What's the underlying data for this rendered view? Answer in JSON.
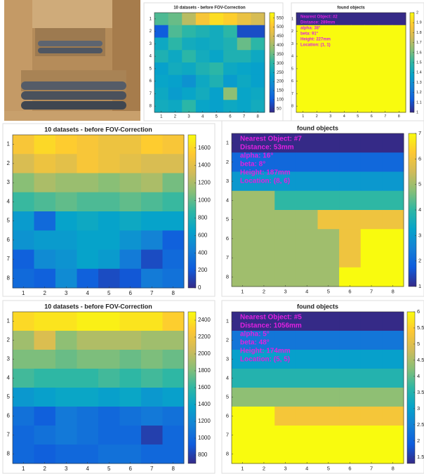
{
  "chart_data": [
    {
      "type": "heatmap",
      "title": "10 datasets - before FOV-Correction",
      "xticks": [
        1,
        2,
        3,
        4,
        5,
        6,
        7,
        8
      ],
      "yticks": [
        1,
        2,
        3,
        4,
        5,
        6,
        7,
        8
      ],
      "clim": [
        30,
        580
      ],
      "cticks": [
        50,
        100,
        150,
        200,
        250,
        300,
        350,
        400,
        450,
        500,
        550
      ],
      "z": [
        [
          330,
          350,
          420,
          500,
          540,
          520,
          480,
          450
        ],
        [
          100,
          330,
          300,
          280,
          260,
          300,
          80,
          80
        ],
        [
          250,
          300,
          260,
          250,
          260,
          280,
          350,
          300
        ],
        [
          280,
          250,
          300,
          260,
          240,
          280,
          280,
          250
        ],
        [
          230,
          260,
          250,
          280,
          300,
          250,
          240,
          230
        ],
        [
          240,
          230,
          200,
          250,
          280,
          220,
          250,
          230
        ],
        [
          250,
          220,
          240,
          260,
          230,
          380,
          240,
          250
        ],
        [
          260,
          250,
          300,
          240,
          230,
          250,
          240,
          260
        ]
      ]
    },
    {
      "type": "heatmap",
      "title": "found objects",
      "xticks": [
        1,
        2,
        3,
        4,
        5,
        6,
        7,
        8
      ],
      "yticks": [
        1,
        2,
        3,
        4,
        5,
        6,
        7,
        8
      ],
      "clim": [
        1,
        2
      ],
      "cticks": [
        1,
        1.1,
        1.2,
        1.3,
        1.4,
        1.5,
        1.6,
        1.7,
        1.8,
        1.9,
        2
      ],
      "annotations": [
        "Nearest Object: #2",
        "Distance: 289mm",
        "alpha: 38°",
        "beta: 91°",
        "Height: 227mm",
        "Location: (1, 1)"
      ],
      "z": [
        [
          1,
          1,
          1,
          1,
          1,
          1,
          1,
          1
        ],
        [
          2,
          2,
          2,
          2,
          2,
          2,
          2,
          2
        ],
        [
          2,
          2,
          2,
          2,
          2,
          2,
          2,
          2
        ],
        [
          2,
          2,
          2,
          2,
          2,
          2,
          2,
          2
        ],
        [
          2,
          2,
          2,
          2,
          2,
          2,
          2,
          2
        ],
        [
          2,
          2,
          2,
          2,
          2,
          2,
          2,
          2
        ],
        [
          2,
          2,
          2,
          2,
          2,
          2,
          2,
          2
        ],
        [
          2,
          2,
          2,
          2,
          2,
          2,
          2,
          2
        ]
      ]
    },
    {
      "type": "heatmap",
      "title": "10 datasets - before FOV-Correction",
      "xticks": [
        1,
        2,
        3,
        4,
        5,
        6,
        7,
        8
      ],
      "yticks": [
        1,
        2,
        3,
        4,
        5,
        6,
        7,
        8
      ],
      "clim": [
        0,
        1750
      ],
      "cticks": [
        0,
        200,
        400,
        600,
        800,
        1000,
        1200,
        1400,
        1600
      ],
      "z": [
        [
          1500,
          1600,
          1550,
          1500,
          1450,
          1450,
          1550,
          1500
        ],
        [
          1350,
          1450,
          1400,
          1500,
          1450,
          1400,
          1350,
          1350
        ],
        [
          1100,
          1200,
          1150,
          1150,
          1100,
          1150,
          1200,
          1050
        ],
        [
          900,
          950,
          1000,
          950,
          950,
          1000,
          950,
          900
        ],
        [
          600,
          300,
          650,
          700,
          650,
          700,
          650,
          650
        ],
        [
          550,
          600,
          600,
          650,
          650,
          550,
          450,
          250
        ],
        [
          250,
          500,
          550,
          650,
          600,
          400,
          150,
          300
        ],
        [
          300,
          250,
          500,
          250,
          150,
          200,
          400,
          350
        ]
      ]
    },
    {
      "type": "heatmap",
      "title": "found objects",
      "xticks": [
        1,
        2,
        3,
        4,
        5,
        6,
        7,
        8
      ],
      "yticks": [
        1,
        2,
        3,
        4,
        5,
        6,
        7,
        8
      ],
      "clim": [
        1,
        7
      ],
      "cticks": [
        1,
        2,
        3,
        4,
        5,
        6,
        7
      ],
      "annotations": [
        "Nearest Object: #7",
        "Distance: 53mm",
        "alpha: 16°",
        "beta: 8°",
        "Height: 187mm",
        "Location: (8, 6)"
      ],
      "z": [
        [
          1,
          1,
          1,
          1,
          1,
          1,
          1,
          1
        ],
        [
          2,
          2,
          2,
          2,
          2,
          2,
          2,
          2
        ],
        [
          3,
          3,
          3,
          3,
          3,
          3,
          3,
          3
        ],
        [
          5,
          5,
          4,
          4,
          4,
          4,
          4,
          4
        ],
        [
          5,
          5,
          5,
          5,
          6,
          6,
          6,
          6
        ],
        [
          5,
          5,
          5,
          5,
          5,
          6,
          7,
          7
        ],
        [
          5,
          5,
          5,
          5,
          5,
          6,
          7,
          7
        ],
        [
          5,
          5,
          5,
          5,
          5,
          7,
          7,
          7
        ]
      ]
    },
    {
      "type": "heatmap",
      "title": "10 datasets - before FOV-Correction",
      "xticks": [
        1,
        2,
        3,
        4,
        5,
        6,
        7,
        8
      ],
      "yticks": [
        1,
        2,
        3,
        4,
        5,
        6,
        7,
        8
      ],
      "clim": [
        700,
        2500
      ],
      "cticks": [
        800,
        1000,
        1200,
        1400,
        1600,
        1800,
        2000,
        2200,
        2400
      ],
      "z": [
        [
          2350,
          2400,
          2400,
          2450,
          2450,
          2400,
          2400,
          2300
        ],
        [
          1900,
          2100,
          1850,
          1950,
          1950,
          1950,
          1900,
          1900
        ],
        [
          1800,
          1800,
          1750,
          1800,
          1800,
          1750,
          1800,
          1750
        ],
        [
          1650,
          1600,
          1600,
          1600,
          1650,
          1600,
          1650,
          1600
        ],
        [
          1300,
          1350,
          1400,
          1400,
          1350,
          1400,
          1300,
          1350
        ],
        [
          1050,
          950,
          1100,
          1050,
          1000,
          1050,
          1100,
          1050
        ],
        [
          1000,
          1050,
          1100,
          1050,
          1000,
          1000,
          800,
          1000
        ],
        [
          1000,
          950,
          1000,
          1000,
          1050,
          1050,
          1000,
          1000
        ]
      ]
    },
    {
      "type": "heatmap",
      "title": "found objects",
      "xticks": [
        1,
        2,
        3,
        4,
        5,
        6,
        7,
        8
      ],
      "yticks": [
        1,
        2,
        3,
        4,
        5,
        6,
        7,
        8
      ],
      "clim": [
        1.3,
        6
      ],
      "cticks": [
        1.5,
        2,
        2.5,
        3,
        3.5,
        4,
        4.5,
        5,
        5.5,
        6
      ],
      "annotations": [
        "Nearest Object: #5",
        "Distance: 1056mm",
        "alpha: 5°",
        "beta: 48°",
        "Height: 174mm",
        "Location: (5, 5)"
      ],
      "z": [
        [
          1.3,
          1.3,
          1.3,
          1.3,
          1.3,
          1.3,
          1.3,
          1.3
        ],
        [
          2.3,
          2.3,
          2.3,
          2.3,
          2.3,
          2.3,
          2.3,
          2.3
        ],
        [
          3,
          3,
          3,
          3,
          3,
          3,
          3,
          3
        ],
        [
          3.5,
          3.5,
          3.5,
          3.5,
          3.5,
          3.5,
          3.5,
          3.5
        ],
        [
          4.3,
          4.3,
          4.3,
          4.3,
          4.3,
          4.3,
          4.3,
          4.3
        ],
        [
          6,
          6,
          5.3,
          5.3,
          5.3,
          5.3,
          5.3,
          5.3
        ],
        [
          6,
          6,
          6,
          6,
          6,
          6,
          6,
          6
        ],
        [
          6,
          6,
          6,
          6,
          6,
          6,
          6,
          6
        ]
      ]
    }
  ]
}
